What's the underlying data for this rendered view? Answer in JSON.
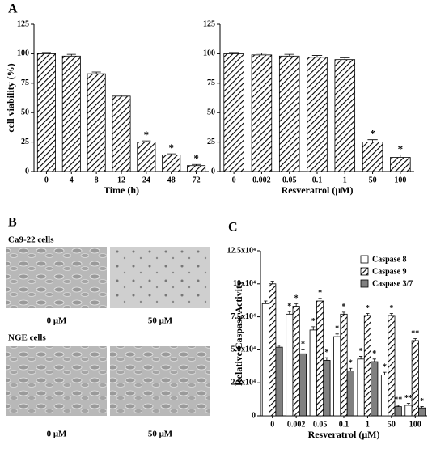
{
  "panel_labels": [
    "A",
    "B",
    "C"
  ],
  "micrographs": {
    "rows": [
      {
        "label": "Ca9-22 cells",
        "captions": [
          "0 μM",
          "50 μM"
        ]
      },
      {
        "label": "NGE cells",
        "captions": [
          "0 μM",
          "50 μM"
        ]
      }
    ]
  },
  "chart_data": [
    {
      "type": "bar",
      "ylabel": "cell viability (%)",
      "xlabel": "Time (h)",
      "categories": [
        "0",
        "4",
        "8",
        "12",
        "24",
        "48",
        "72"
      ],
      "values": [
        100,
        98,
        83,
        64,
        25,
        14,
        5
      ],
      "errors": [
        1,
        1.5,
        1.5,
        1,
        1,
        1,
        1
      ],
      "significance": [
        null,
        null,
        null,
        null,
        "*",
        "*",
        "*"
      ],
      "color": "#000000",
      "pattern": "hatch",
      "ylim": [
        0,
        125
      ],
      "yticks": [
        0,
        25,
        50,
        75,
        100,
        125
      ]
    },
    {
      "type": "bar",
      "xlabel": "Resveratrol (μM)",
      "categories": [
        "0",
        "0.002",
        "0.05",
        "0.1",
        "1",
        "50",
        "100"
      ],
      "values": [
        100,
        99,
        98,
        97,
        95,
        25,
        12
      ],
      "errors": [
        1,
        1.5,
        1.5,
        1.5,
        1.5,
        2,
        2
      ],
      "significance": [
        null,
        null,
        null,
        null,
        null,
        "*",
        "*"
      ],
      "color": "#000000",
      "pattern": "hatch",
      "ylim": [
        0,
        125
      ],
      "yticks": [
        0,
        25,
        50,
        75,
        100,
        125
      ]
    },
    {
      "type": "bar",
      "ylabel": "Relative Caspase Activity",
      "xlabel": "Resveratrol (μM)",
      "categories": [
        "0",
        "0.002",
        "0.05",
        "0.1",
        "1",
        "50",
        "100"
      ],
      "series": [
        {
          "name": "Caspase 8",
          "color": "#ffffff",
          "values": [
            85000,
            77000,
            65000,
            60000,
            43000,
            31000,
            8000
          ],
          "errors": [
            2000,
            2000,
            2500,
            2000,
            2000,
            2000,
            1500
          ],
          "significance": [
            null,
            "*",
            "*",
            "*",
            "*",
            "*",
            "**"
          ]
        },
        {
          "name": "Caspase 9",
          "color": "#ffffff",
          "pattern": "hatch",
          "values": [
            100000,
            83000,
            87000,
            77000,
            76000,
            76000,
            57000
          ],
          "errors": [
            2000,
            2000,
            2000,
            1500,
            1500,
            1500,
            1500
          ],
          "significance": [
            null,
            "*",
            "*",
            "*",
            "*",
            "*",
            "**"
          ]
        },
        {
          "name": "Caspase 3/7",
          "color": "#808080",
          "values": [
            52000,
            47000,
            42000,
            34000,
            41000,
            7000,
            6000
          ],
          "errors": [
            1500,
            3000,
            2000,
            2000,
            2000,
            1000,
            1000
          ],
          "significance": [
            null,
            "*",
            "*",
            "*",
            "*",
            "**",
            "*"
          ]
        }
      ],
      "legend": "upper right",
      "ylim": [
        0,
        125000
      ],
      "yticks": [
        0,
        {
          "value": 25000,
          "label": "2.5x10⁴"
        },
        {
          "value": 50000,
          "label": "5.0x10⁴"
        },
        {
          "value": 75000,
          "label": "7.5x10⁴"
        },
        {
          "value": 100000,
          "label": "10x10⁴"
        },
        {
          "value": 125000,
          "label": "12.5x10⁴"
        }
      ]
    }
  ]
}
